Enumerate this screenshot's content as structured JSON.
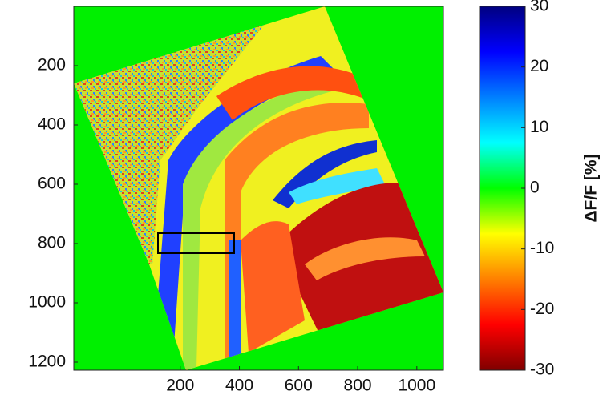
{
  "chart_data": {
    "type": "image",
    "xlim": [
      -160,
      1090
    ],
    "ylim": [
      0,
      1227
    ],
    "xticks": [
      200,
      400,
      600,
      800,
      1000
    ],
    "yticks": [
      200,
      400,
      600,
      800,
      1000,
      1200
    ],
    "colorbar": {
      "clim": [
        -30,
        30
      ],
      "ticks": [
        -30,
        -20,
        -10,
        0,
        10,
        20,
        30
      ],
      "label": "ΔF/F [%]"
    }
  }
}
